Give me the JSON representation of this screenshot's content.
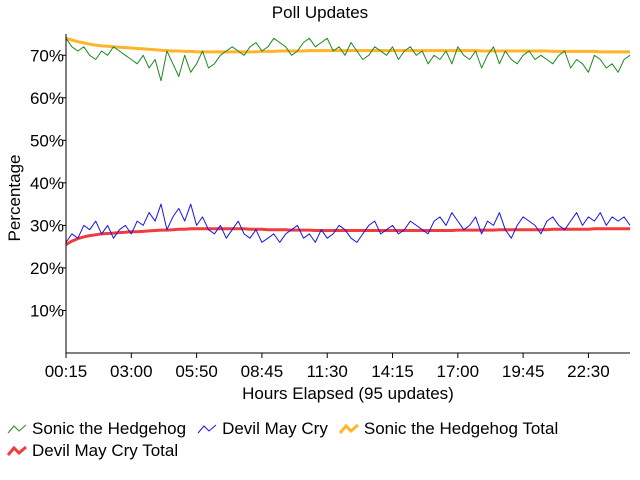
{
  "chart_data": {
    "type": "line",
    "title": "Poll Updates",
    "xlabel": "Hours Elapsed (95 updates)",
    "ylabel": "Percentage",
    "ylim": [
      0,
      75
    ],
    "yticks": [
      10,
      20,
      30,
      40,
      50,
      60,
      70
    ],
    "ytick_labels": [
      "10%",
      "20%",
      "30%",
      "40%",
      "50%",
      "60%",
      "70%"
    ],
    "xlim": [
      0,
      95
    ],
    "xticks": [
      0,
      11,
      22,
      33,
      44,
      55,
      66,
      77,
      88
    ],
    "xtick_labels": [
      "00:15",
      "03:00",
      "05:50",
      "08:45",
      "11:30",
      "14:15",
      "17:00",
      "19:45",
      "22:30"
    ],
    "series": [
      {
        "name": "Sonic the Hedgehog",
        "color": "#1e8a1e",
        "values": [
          74,
          72,
          71,
          72,
          70,
          69,
          71,
          70,
          72,
          71,
          70,
          69,
          68,
          70,
          67,
          69,
          64,
          71,
          68,
          65,
          70,
          66,
          68,
          71,
          67,
          68,
          70,
          71,
          72,
          71,
          70,
          72,
          73,
          71,
          72,
          74,
          73,
          72,
          70,
          71,
          73,
          74,
          72,
          73,
          74,
          71,
          72,
          70,
          73,
          71,
          69,
          70,
          72,
          71,
          70,
          72,
          69,
          71,
          72,
          70,
          71,
          68,
          70,
          69,
          71,
          68,
          72,
          70,
          69,
          71,
          67,
          70,
          72,
          68,
          71,
          69,
          68,
          70,
          71,
          69,
          70,
          69,
          68,
          70,
          71,
          67,
          69,
          68,
          66,
          70,
          69,
          67,
          68,
          66,
          69,
          70
        ]
      },
      {
        "name": "Devil May Cry",
        "color": "#1414e6",
        "values": [
          26,
          28,
          27,
          30,
          29,
          31,
          28,
          30,
          27,
          29,
          30,
          28,
          31,
          30,
          33,
          31,
          35,
          29,
          32,
          34,
          31,
          35,
          30,
          32,
          29,
          28,
          30,
          27,
          29,
          31,
          28,
          27,
          29,
          26,
          27,
          28,
          26,
          28,
          29,
          30,
          27,
          28,
          26,
          29,
          27,
          28,
          30,
          29,
          27,
          26,
          28,
          30,
          31,
          28,
          29,
          30,
          28,
          29,
          31,
          30,
          29,
          28,
          31,
          32,
          30,
          33,
          31,
          29,
          30,
          32,
          28,
          31,
          30,
          33,
          29,
          27,
          30,
          32,
          31,
          30,
          28,
          31,
          32,
          30,
          29,
          31,
          33,
          30,
          32,
          31,
          33,
          30,
          32,
          31,
          32,
          30
        ]
      },
      {
        "name": "Sonic the Hedgehog Total",
        "color": "#ffb42a",
        "values": [
          74,
          73.6,
          73.2,
          72.9,
          72.6,
          72.4,
          72.2,
          72.1,
          72,
          71.9,
          71.8,
          71.7,
          71.6,
          71.5,
          71.4,
          71.3,
          71.2,
          71.1,
          71,
          71,
          70.9,
          70.9,
          70.8,
          70.8,
          70.8,
          70.8,
          70.8,
          70.8,
          70.8,
          70.8,
          70.8,
          70.8,
          70.8,
          70.9,
          70.9,
          70.9,
          71,
          71,
          71,
          71,
          71,
          71.1,
          71.1,
          71.1,
          71.1,
          71.1,
          71.1,
          71.1,
          71.1,
          71.1,
          71.1,
          71.1,
          71.1,
          71.1,
          71.1,
          71.1,
          71.1,
          71.1,
          71.1,
          71.1,
          71.1,
          71.1,
          71.1,
          71.1,
          71.1,
          71.1,
          71.1,
          71.1,
          71.1,
          71.1,
          71,
          71,
          71,
          71,
          71,
          71,
          71,
          71,
          71,
          71,
          71,
          71,
          70.9,
          70.9,
          70.9,
          70.9,
          70.9,
          70.9,
          70.9,
          70.9,
          70.8,
          70.8,
          70.8,
          70.8,
          70.8,
          70.8
        ]
      },
      {
        "name": "Devil May Cry Total",
        "color": "#f03c3c",
        "values": [
          25.5,
          26.3,
          26.9,
          27.3,
          27.6,
          27.8,
          28,
          28.1,
          28.2,
          28.3,
          28.4,
          28.5,
          28.5,
          28.6,
          28.7,
          28.8,
          28.9,
          28.9,
          29,
          29.1,
          29.1,
          29.2,
          29.2,
          29.2,
          29.2,
          29.2,
          29.2,
          29.2,
          29.2,
          29.2,
          29.2,
          29.1,
          29.1,
          29.1,
          29,
          29,
          29,
          29,
          28.9,
          28.9,
          28.9,
          28.9,
          28.8,
          28.8,
          28.8,
          28.8,
          28.8,
          28.8,
          28.8,
          28.8,
          28.8,
          28.8,
          28.8,
          28.8,
          28.8,
          28.8,
          28.8,
          28.8,
          28.8,
          28.8,
          28.8,
          28.8,
          28.8,
          28.8,
          28.8,
          28.8,
          28.9,
          28.9,
          28.9,
          28.9,
          28.9,
          28.9,
          28.9,
          29,
          29,
          29,
          29,
          29,
          29,
          29,
          29,
          29,
          29.1,
          29.1,
          29.1,
          29.1,
          29.1,
          29.1,
          29.1,
          29.2,
          29.2,
          29.2,
          29.2,
          29.2,
          29.2,
          29.2
        ]
      }
    ],
    "legend": {
      "rows": [
        [
          "Sonic the Hedgehog",
          "Devil May Cry",
          "Sonic the Hedgehog Total"
        ],
        [
          "Devil May Cry Total"
        ]
      ]
    }
  }
}
